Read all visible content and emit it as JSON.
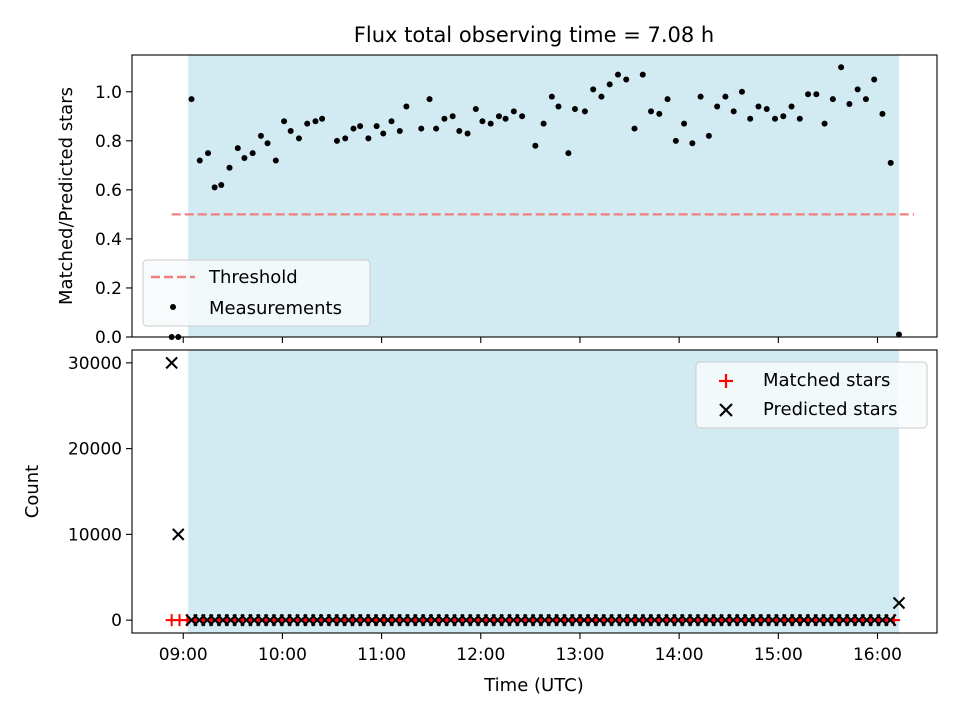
{
  "figure": {
    "title": "Flux total observing time = 7.08 h"
  },
  "colors": {
    "observing_window": "#add8e6",
    "threshold": "#f08080",
    "measurements": "#000000",
    "matched": "#ff0000",
    "predicted": "#000000"
  },
  "chart_data": [
    {
      "type": "scatter",
      "panel": "top",
      "title": "Flux total observing time = 7.08 h",
      "xlabel": "",
      "ylabel": "Matched/Predicted stars",
      "xlim": [
        "08:29",
        "16:36"
      ],
      "ylim": [
        0,
        1.15
      ],
      "yticks": [
        0.0,
        0.2,
        0.4,
        0.6,
        0.8,
        1.0
      ],
      "ytick_labels": [
        "0.0",
        "0.2",
        "0.4",
        "0.6",
        "0.8",
        "1.0"
      ],
      "observing_window": [
        "09:03",
        "16:13"
      ],
      "threshold": {
        "name": "Threshold",
        "y": 0.5,
        "x_range": [
          "08:53",
          "16:22"
        ],
        "style": "dashed"
      },
      "legend": {
        "placement": "lower-left",
        "entries": [
          "Threshold",
          "Measurements"
        ]
      },
      "series": [
        {
          "name": "Measurements",
          "points": [
            [
              "08:53",
              0.0
            ],
            [
              "08:57",
              0.0
            ],
            [
              "09:05",
              0.97
            ],
            [
              "09:10",
              0.72
            ],
            [
              "09:15",
              0.75
            ],
            [
              "09:19",
              0.61
            ],
            [
              "09:23",
              0.62
            ],
            [
              "09:28",
              0.69
            ],
            [
              "09:33",
              0.77
            ],
            [
              "09:37",
              0.73
            ],
            [
              "09:42",
              0.75
            ],
            [
              "09:47",
              0.82
            ],
            [
              "09:51",
              0.79
            ],
            [
              "09:56",
              0.72
            ],
            [
              "10:01",
              0.88
            ],
            [
              "10:05",
              0.84
            ],
            [
              "10:10",
              0.81
            ],
            [
              "10:15",
              0.87
            ],
            [
              "10:20",
              0.88
            ],
            [
              "10:24",
              0.89
            ],
            [
              "10:33",
              0.8
            ],
            [
              "10:38",
              0.81
            ],
            [
              "10:43",
              0.85
            ],
            [
              "10:47",
              0.86
            ],
            [
              "10:52",
              0.81
            ],
            [
              "10:57",
              0.86
            ],
            [
              "11:01",
              0.83
            ],
            [
              "11:06",
              0.88
            ],
            [
              "11:11",
              0.84
            ],
            [
              "11:15",
              0.94
            ],
            [
              "11:24",
              0.85
            ],
            [
              "11:29",
              0.97
            ],
            [
              "11:33",
              0.85
            ],
            [
              "11:38",
              0.89
            ],
            [
              "11:43",
              0.9
            ],
            [
              "11:47",
              0.84
            ],
            [
              "11:52",
              0.83
            ],
            [
              "11:57",
              0.93
            ],
            [
              "12:01",
              0.88
            ],
            [
              "12:06",
              0.87
            ],
            [
              "12:11",
              0.9
            ],
            [
              "12:15",
              0.89
            ],
            [
              "12:20",
              0.92
            ],
            [
              "12:25",
              0.9
            ],
            [
              "12:33",
              0.78
            ],
            [
              "12:38",
              0.87
            ],
            [
              "12:43",
              0.98
            ],
            [
              "12:47",
              0.94
            ],
            [
              "12:53",
              0.75
            ],
            [
              "12:57",
              0.93
            ],
            [
              "13:03",
              0.92
            ],
            [
              "13:08",
              1.01
            ],
            [
              "13:13",
              0.98
            ],
            [
              "13:18",
              1.03
            ],
            [
              "13:23",
              1.07
            ],
            [
              "13:28",
              1.05
            ],
            [
              "13:33",
              0.85
            ],
            [
              "13:38",
              1.07
            ],
            [
              "13:43",
              0.92
            ],
            [
              "13:48",
              0.91
            ],
            [
              "13:53",
              0.97
            ],
            [
              "13:58",
              0.8
            ],
            [
              "14:03",
              0.87
            ],
            [
              "14:08",
              0.79
            ],
            [
              "14:13",
              0.98
            ],
            [
              "14:18",
              0.82
            ],
            [
              "14:23",
              0.94
            ],
            [
              "14:28",
              0.98
            ],
            [
              "14:33",
              0.92
            ],
            [
              "14:38",
              1.0
            ],
            [
              "14:43",
              0.89
            ],
            [
              "14:48",
              0.94
            ],
            [
              "14:53",
              0.93
            ],
            [
              "14:58",
              0.89
            ],
            [
              "15:03",
              0.9
            ],
            [
              "15:08",
              0.94
            ],
            [
              "15:13",
              0.89
            ],
            [
              "15:18",
              0.99
            ],
            [
              "15:23",
              0.99
            ],
            [
              "15:28",
              0.87
            ],
            [
              "15:33",
              0.97
            ],
            [
              "15:38",
              1.1
            ],
            [
              "15:43",
              0.95
            ],
            [
              "15:48",
              1.01
            ],
            [
              "15:53",
              0.97
            ],
            [
              "15:58",
              1.05
            ],
            [
              "16:03",
              0.91
            ],
            [
              "16:08",
              0.71
            ],
            [
              "16:13",
              0.01
            ]
          ]
        }
      ]
    },
    {
      "type": "scatter",
      "panel": "bottom",
      "xlabel": "Time (UTC)",
      "ylabel": "Count",
      "xlim": [
        "08:29",
        "16:36"
      ],
      "ylim": [
        -1500,
        31500
      ],
      "yticks": [
        0,
        10000,
        20000,
        30000
      ],
      "ytick_labels": [
        "0",
        "10000",
        "20000",
        "30000"
      ],
      "xticks": [
        "09:00",
        "10:00",
        "11:00",
        "12:00",
        "13:00",
        "14:00",
        "15:00",
        "16:00"
      ],
      "xtick_labels": [
        "09:00",
        "10:00",
        "11:00",
        "12:00",
        "13:00",
        "14:00",
        "15:00",
        "16:00"
      ],
      "observing_window": [
        "09:03",
        "16:13"
      ],
      "legend": {
        "placement": "upper-right",
        "entries": [
          "Matched stars",
          "Predicted stars"
        ]
      },
      "series": [
        {
          "name": "Matched stars",
          "marker": "+",
          "range": [
            "08:53",
            "16:13"
          ],
          "step_minutes": 4.75,
          "value": 0
        },
        {
          "name": "Predicted stars",
          "marker": "x",
          "range": [
            "09:05",
            "16:08"
          ],
          "step_minutes": 4.75,
          "value": 0,
          "extra_points": [
            [
              "08:53",
              30000
            ],
            [
              "08:57",
              10000
            ],
            [
              "16:13",
              2000
            ]
          ]
        }
      ]
    }
  ]
}
